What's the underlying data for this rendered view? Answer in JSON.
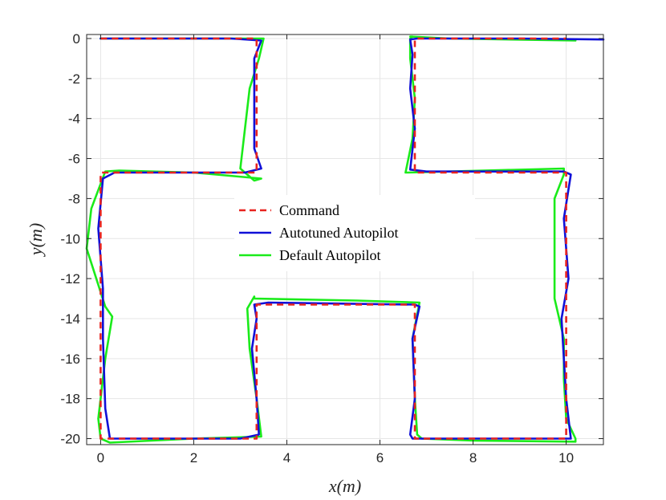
{
  "chart_data": {
    "type": "line",
    "title": "",
    "xlabel": "x(m)",
    "ylabel": "y(m)",
    "xlim": [
      -0.3,
      10.8
    ],
    "ylim": [
      -20.3,
      0.2
    ],
    "xticks": [
      0,
      2,
      4,
      6,
      8,
      10
    ],
    "yticks": [
      0,
      -2,
      -4,
      -6,
      -8,
      -10,
      -12,
      -14,
      -16,
      -18,
      -20
    ],
    "grid": true,
    "legend_position": "center",
    "series": [
      {
        "name": "Command",
        "color": "#e8231f",
        "style": "dashed",
        "x": [
          0,
          3.35,
          3.35,
          0,
          0,
          3.35,
          3.35,
          6.75,
          6.75,
          10,
          10,
          6.75,
          6.75,
          10
        ],
        "y": [
          0,
          0,
          -6.7,
          -6.7,
          -20,
          -20,
          -13.3,
          -13.3,
          -20,
          -20,
          -6.7,
          -6.7,
          0,
          0
        ]
      },
      {
        "name": "Autotuned Autopilot",
        "color": "#1010d8",
        "style": "solid",
        "x": [
          0,
          2.8,
          3.45,
          3.3,
          3.3,
          3.45,
          3.1,
          0.3,
          0.05,
          -0.05,
          0.05,
          0.05,
          0.1,
          0.2,
          3.0,
          3.4,
          3.35,
          3.25,
          3.35,
          3.3,
          3.6,
          6.75,
          6.85,
          6.7,
          6.75,
          6.65,
          6.7,
          6.85,
          9.5,
          10.1,
          10.0,
          9.9,
          10.05,
          9.95,
          10.1,
          9.95,
          9.9,
          7.0,
          6.65,
          6.75,
          6.65,
          6.7,
          6.65,
          6.8,
          9.0,
          10.8
        ],
        "y": [
          0,
          0,
          -0.1,
          -1.0,
          -5.5,
          -6.5,
          -6.7,
          -6.7,
          -7.0,
          -9.5,
          -12.5,
          -15.0,
          -18.5,
          -20.0,
          -20.0,
          -19.8,
          -18.0,
          -15.5,
          -14.0,
          -13.3,
          -13.2,
          -13.3,
          -13.4,
          -15.0,
          -18.0,
          -19.8,
          -20.0,
          -20.0,
          -20.0,
          -20.0,
          -18.0,
          -14.0,
          -12.0,
          -9.0,
          -6.8,
          -6.65,
          -6.65,
          -6.65,
          -6.55,
          -4.5,
          -2.5,
          -0.8,
          -0.05,
          0,
          0,
          -0.05
        ]
      },
      {
        "name": "Default Autopilot",
        "color": "#1aeb1a",
        "style": "solid",
        "x": [
          0,
          3.5,
          3.4,
          3.2,
          3.0,
          3.3,
          3.45,
          2.0,
          0.4,
          0.1,
          -0.2,
          -0.3,
          0.1,
          0.25,
          0.1,
          -0.05,
          0.0,
          0.2,
          2.0,
          3.45,
          3.35,
          3.2,
          3.15,
          3.3,
          3.3,
          5.5,
          6.85,
          6.7,
          6.75,
          6.8,
          6.9,
          8.0,
          10.2,
          10.2,
          10.0,
          9.95,
          9.95,
          9.75,
          9.75,
          9.95,
          9.95,
          6.6,
          6.55,
          6.7,
          6.75,
          6.65,
          6.65,
          6.7,
          6.65,
          7.5,
          10.2
        ],
        "y": [
          0,
          0,
          -1.0,
          -2.5,
          -6.5,
          -7.1,
          -7.0,
          -6.7,
          -6.6,
          -6.65,
          -8.5,
          -10.5,
          -13.4,
          -13.9,
          -16.0,
          -19.0,
          -20.0,
          -20.2,
          -20.0,
          -19.9,
          -18.0,
          -15.5,
          -13.5,
          -12.9,
          -13.0,
          -13.1,
          -13.2,
          -15.0,
          -18.0,
          -19.8,
          -20.0,
          -20.1,
          -20.15,
          -20.0,
          -19.0,
          -17.0,
          -15.0,
          -13.0,
          -8.0,
          -6.8,
          -6.5,
          -6.7,
          -6.7,
          -5.0,
          -3.0,
          -1.0,
          0,
          0.1,
          0.1,
          0.0,
          -0.1
        ]
      }
    ]
  }
}
